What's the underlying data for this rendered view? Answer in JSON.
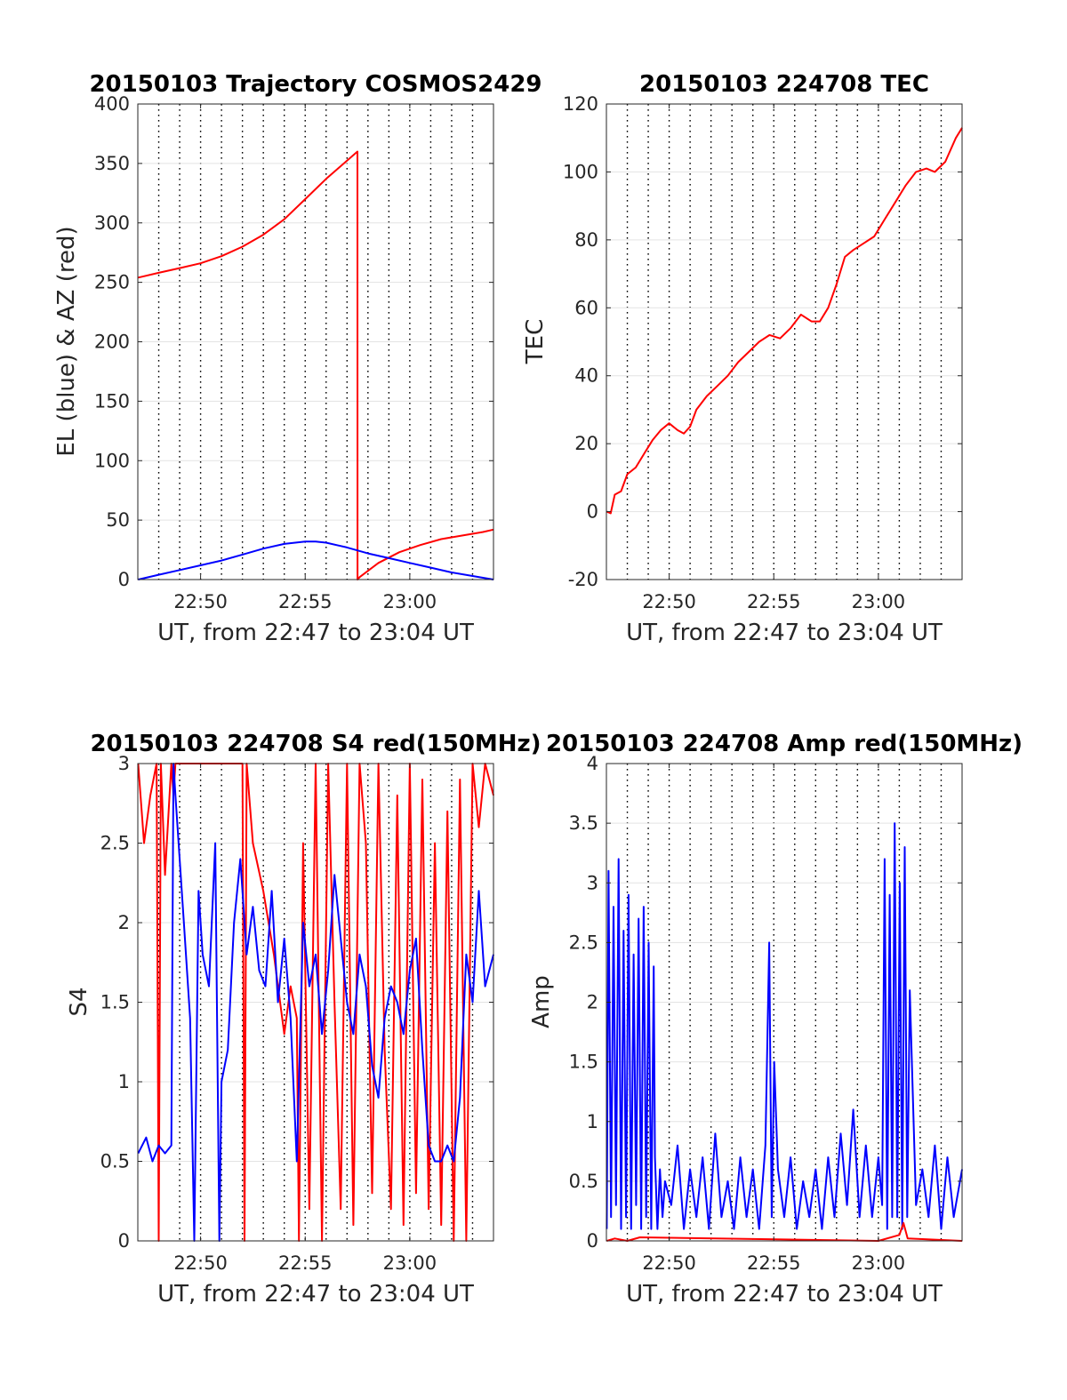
{
  "chart_data": [
    {
      "type": "line",
      "title": "20150103 Trajectory COSMOS2429",
      "xlabel": "UT, from 22:47 to 23:04 UT",
      "ylabel": "EL (blue) & AZ (red)",
      "xlim": [
        22.78333,
        23.06667
      ],
      "ylim": [
        0,
        400
      ],
      "yticks": [
        0,
        50,
        100,
        150,
        200,
        250,
        300,
        350,
        400
      ],
      "ytick_labels": [
        "0",
        "50",
        "100",
        "150",
        "200",
        "250",
        "300",
        "350",
        "400"
      ],
      "xticks": [
        22.83333,
        22.91667,
        23.0
      ],
      "xtick_labels": [
        "22:50",
        "22:55",
        "23:00"
      ],
      "grid": true,
      "series": [
        {
          "color": "#ff0000",
          "x": [
            22.7836,
            22.8,
            22.8167,
            22.8333,
            22.85,
            22.8667,
            22.8833,
            22.9,
            22.9167,
            22.9333,
            22.9583,
            22.95834,
            22.96,
            22.975,
            22.9917,
            23.0083,
            23.025,
            23.0417,
            23.0583,
            23.0667
          ],
          "y": [
            254,
            258,
            262,
            266,
            272,
            280,
            290,
            303,
            320,
            337,
            360,
            0,
            2,
            14,
            23,
            29,
            34,
            37,
            40,
            42
          ]
        },
        {
          "color": "#0000ff",
          "x": [
            22.7836,
            22.8,
            22.8167,
            22.8333,
            22.85,
            22.8667,
            22.8833,
            22.9,
            22.9167,
            22.925,
            22.9333,
            22.95,
            22.9667,
            22.9833,
            23.0,
            23.0167,
            23.0333,
            23.05,
            23.0667
          ],
          "y": [
            0,
            4,
            8,
            12,
            16,
            21,
            26,
            30,
            32,
            32,
            31,
            27,
            22,
            18,
            14,
            10,
            6,
            3,
            0
          ]
        }
      ]
    },
    {
      "type": "line",
      "title": "20150103 224708 TEC",
      "xlabel": "UT, from 22:47 to 23:04 UT",
      "ylabel": "TEC",
      "xlim": [
        22.78333,
        23.06667
      ],
      "ylim": [
        -20,
        120
      ],
      "yticks": [
        -20,
        0,
        20,
        40,
        60,
        80,
        100,
        120
      ],
      "ytick_labels": [
        "-20",
        "0",
        "20",
        "40",
        "60",
        "80",
        "100",
        "120"
      ],
      "xticks": [
        22.83333,
        22.91667,
        23.0
      ],
      "xtick_labels": [
        "22:50",
        "22:55",
        "23:00"
      ],
      "grid": true,
      "series": [
        {
          "color": "#ff0000",
          "x": [
            22.7836,
            22.7867,
            22.79,
            22.795,
            22.8,
            22.8067,
            22.8133,
            22.82,
            22.8267,
            22.8333,
            22.84,
            22.845,
            22.85,
            22.855,
            22.8633,
            22.8717,
            22.88,
            22.8883,
            22.8967,
            22.905,
            22.9133,
            22.9217,
            22.93,
            22.9383,
            22.9467,
            22.9533,
            22.96,
            22.9667,
            22.9733,
            22.98,
            22.9883,
            22.9967,
            23.005,
            23.0133,
            23.0217,
            23.03,
            23.0383,
            23.045,
            23.0533,
            23.0617,
            23.0667
          ],
          "y": [
            0,
            -0.5,
            5,
            6,
            11,
            13,
            17,
            21,
            24,
            26,
            24,
            23,
            25,
            30,
            34,
            37,
            40,
            44,
            47,
            50,
            52,
            51,
            54,
            58,
            56,
            56,
            60,
            67,
            75,
            77,
            79,
            81,
            86,
            91,
            96,
            100,
            101,
            100,
            103,
            110,
            113
          ]
        }
      ]
    },
    {
      "type": "line",
      "title": "20150103 224708 S4 red(150MHz)",
      "xlabel": "UT, from 22:47 to 23:04 UT",
      "ylabel": "S4",
      "xlim": [
        22.78333,
        23.06667
      ],
      "ylim": [
        0,
        3
      ],
      "yticks": [
        0,
        0.5,
        1,
        1.5,
        2,
        2.5,
        3
      ],
      "ytick_labels": [
        "0",
        "0.5",
        "1",
        "1.5",
        "2",
        "2.5",
        "3"
      ],
      "xticks": [
        22.83333,
        22.91667,
        23.0
      ],
      "xtick_labels": [
        "22:50",
        "22:55",
        "23:00"
      ],
      "grid": true,
      "series": [
        {
          "color": "#ff0000",
          "x": [
            22.7836,
            22.7883,
            22.7933,
            22.7983,
            22.8,
            22.8017,
            22.805,
            22.81,
            22.8117,
            22.8133,
            22.8167,
            22.8667,
            22.8683,
            22.87,
            22.875,
            22.8833,
            22.8917,
            22.9,
            22.905,
            22.91,
            22.9117,
            22.915,
            22.92,
            22.925,
            22.93,
            22.935,
            22.94,
            22.945,
            22.95,
            22.955,
            22.96,
            22.965,
            22.97,
            22.975,
            22.98,
            22.985,
            22.99,
            22.995,
            23.0,
            23.005,
            23.01,
            23.015,
            23.02,
            23.025,
            23.03,
            23.035,
            23.04,
            23.045,
            23.05,
            23.055,
            23.06,
            23.0667
          ],
          "y": [
            3,
            2.5,
            2.8,
            3,
            0,
            3,
            2.3,
            3,
            2.8,
            3,
            3,
            3,
            0,
            3,
            2.5,
            2.2,
            1.8,
            1.3,
            1.6,
            1.4,
            0,
            2.5,
            0.2,
            3,
            0,
            3,
            1.5,
            0.2,
            3,
            0.1,
            3,
            2.5,
            0.3,
            3,
            1.2,
            0.2,
            2.8,
            0.1,
            3,
            0.3,
            2.9,
            0.2,
            2.5,
            0.1,
            2.7,
            0,
            2.9,
            0,
            3,
            2.6,
            3,
            2.8
          ]
        },
        {
          "color": "#0000ff",
          "x": [
            22.7836,
            22.79,
            22.795,
            22.8,
            22.805,
            22.81,
            22.8117,
            22.8133,
            22.82,
            22.825,
            22.8283,
            22.8317,
            22.835,
            22.84,
            22.845,
            22.8483,
            22.85,
            22.855,
            22.86,
            22.865,
            22.87,
            22.875,
            22.88,
            22.885,
            22.89,
            22.895,
            22.9,
            22.905,
            22.91,
            22.915,
            22.92,
            22.925,
            22.93,
            22.935,
            22.94,
            22.945,
            22.95,
            22.955,
            22.96,
            22.965,
            22.97,
            22.975,
            22.98,
            22.985,
            22.99,
            22.995,
            23.0,
            23.005,
            23.01,
            23.015,
            23.02,
            23.025,
            23.03,
            23.035,
            23.04,
            23.045,
            23.05,
            23.055,
            23.06,
            23.0667
          ],
          "y": [
            0.55,
            0.65,
            0.5,
            0.6,
            0.55,
            0.6,
            3,
            2.8,
            2,
            1.4,
            0,
            2.2,
            1.8,
            1.6,
            2.5,
            0,
            1,
            1.2,
            2,
            2.4,
            1.8,
            2.1,
            1.7,
            1.6,
            2.2,
            1.5,
            1.9,
            1.4,
            0.5,
            2,
            1.6,
            1.8,
            1.3,
            1.7,
            2.3,
            1.9,
            1.5,
            1.3,
            1.8,
            1.6,
            1.1,
            0.9,
            1.4,
            1.6,
            1.5,
            1.3,
            1.7,
            1.9,
            1.2,
            0.6,
            0.5,
            0.5,
            0.6,
            0.5,
            0.9,
            1.8,
            1.5,
            2.2,
            1.6,
            1.8
          ]
        }
      ]
    },
    {
      "type": "line",
      "title": "20150103 224708 Amp red(150MHz)",
      "xlabel": "UT, from 22:47 to 23:04 UT",
      "ylabel": "Amp",
      "xlim": [
        22.78333,
        23.06667
      ],
      "ylim": [
        0,
        4
      ],
      "yticks": [
        0,
        0.5,
        1,
        1.5,
        2,
        2.5,
        3,
        3.5,
        4
      ],
      "ytick_labels": [
        "0",
        "0.5",
        "1",
        "1.5",
        "2",
        "2.5",
        "3",
        "3.5",
        "4"
      ],
      "xticks": [
        22.83333,
        22.91667,
        23.0
      ],
      "xtick_labels": [
        "22:50",
        "22:55",
        "23:00"
      ],
      "grid": true,
      "series": [
        {
          "color": "#0000ff",
          "x": [
            22.7836,
            22.785,
            22.787,
            22.789,
            22.791,
            22.793,
            22.795,
            22.797,
            22.799,
            22.801,
            22.803,
            22.805,
            22.807,
            22.809,
            22.811,
            22.813,
            22.815,
            22.817,
            22.819,
            22.821,
            22.822,
            22.824,
            22.826,
            22.828,
            22.83,
            22.835,
            22.84,
            22.845,
            22.85,
            22.855,
            22.86,
            22.865,
            22.87,
            22.875,
            22.88,
            22.885,
            22.89,
            22.895,
            22.9,
            22.905,
            22.91,
            22.913,
            22.915,
            22.917,
            22.92,
            22.925,
            22.93,
            22.935,
            22.94,
            22.945,
            22.95,
            22.955,
            22.96,
            22.965,
            22.97,
            22.975,
            22.98,
            22.985,
            22.99,
            22.995,
            23.0,
            23.003,
            23.005,
            23.007,
            23.009,
            23.011,
            23.013,
            23.015,
            23.017,
            23.019,
            23.021,
            23.023,
            23.025,
            23.03,
            23.035,
            23.04,
            23.045,
            23.05,
            23.055,
            23.06,
            23.0667
          ],
          "y": [
            0.1,
            3.1,
            0.2,
            2.8,
            0.3,
            3.2,
            0.1,
            2.6,
            0.2,
            2.9,
            0.1,
            2.4,
            0.3,
            2.7,
            0.1,
            2.8,
            0.2,
            2.5,
            0.1,
            2.3,
            0.7,
            0.1,
            0.6,
            0.2,
            0.5,
            0.3,
            0.8,
            0.1,
            0.6,
            0.2,
            0.7,
            0.1,
            0.9,
            0.2,
            0.5,
            0.1,
            0.7,
            0.2,
            0.6,
            0.1,
            0.8,
            2.5,
            0.2,
            1.5,
            0.6,
            0.2,
            0.7,
            0.1,
            0.5,
            0.2,
            0.6,
            0.1,
            0.7,
            0.2,
            0.9,
            0.3,
            1.1,
            0.2,
            0.8,
            0.2,
            0.7,
            0.3,
            3.2,
            0.1,
            2.9,
            0.2,
            3.5,
            0.2,
            3.0,
            0.1,
            3.3,
            0.2,
            2.1,
            0.3,
            0.6,
            0.2,
            0.8,
            0.1,
            0.7,
            0.2,
            0.6
          ]
        },
        {
          "color": "#ff0000",
          "x": [
            22.7836,
            22.79,
            22.8,
            22.81,
            23.0,
            23.0167,
            23.02,
            23.0233,
            23.0667
          ],
          "y": [
            0,
            0.02,
            0,
            0.03,
            0,
            0.05,
            0.15,
            0.02,
            0
          ]
        }
      ]
    }
  ]
}
